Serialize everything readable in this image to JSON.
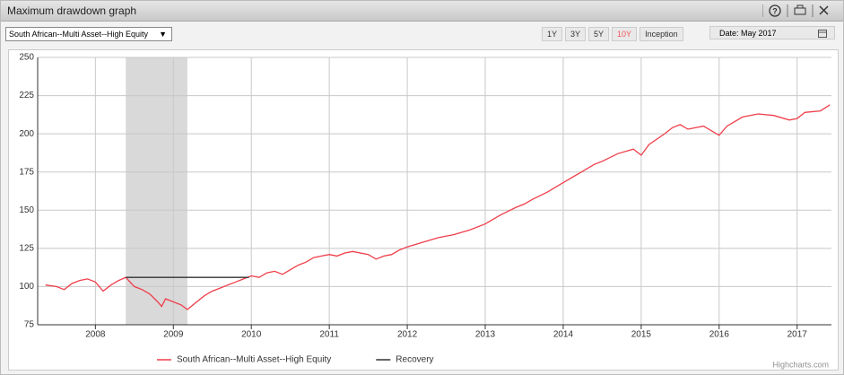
{
  "window": {
    "title": "Maximum drawdown graph",
    "fund_select": "South African--Multi Asset--High Equity",
    "periods": [
      "1Y",
      "3Y",
      "5Y",
      "10Y",
      "Inception"
    ],
    "active_period": 3,
    "date": "Date: May 2017",
    "credit": "Highcharts.com"
  },
  "chart_data": {
    "type": "line",
    "xlim": [
      2007.26,
      2017.44
    ],
    "xticks": [
      2008,
      2009,
      2010,
      2011,
      2012,
      2013,
      2014,
      2015,
      2016,
      2017
    ],
    "ylim": [
      75,
      250
    ],
    "yticks": [
      75,
      100,
      125,
      150,
      175,
      200,
      225,
      250
    ],
    "grid": true,
    "plot_band": [
      2008.39,
      2009.18
    ],
    "plot_band_color": "#d9d9d9",
    "series": [
      {
        "name": "South African--Multi Asset--High Equity",
        "color": "#ef3e4a",
        "x": [
          2007.36,
          2007.5,
          2007.6,
          2007.7,
          2007.8,
          2007.9,
          2008.0,
          2008.1,
          2008.2,
          2008.3,
          2008.39,
          2008.5,
          2008.6,
          2008.7,
          2008.8,
          2008.85,
          2008.9,
          2009.0,
          2009.1,
          2009.18,
          2009.3,
          2009.4,
          2009.5,
          2009.6,
          2009.7,
          2009.8,
          2009.9,
          2010.0,
          2010.1,
          2010.2,
          2010.3,
          2010.4,
          2010.5,
          2010.6,
          2010.7,
          2010.8,
          2010.9,
          2011.0,
          2011.1,
          2011.2,
          2011.3,
          2011.5,
          2011.6,
          2011.7,
          2011.8,
          2011.9,
          2012.0,
          2012.2,
          2012.4,
          2012.6,
          2012.8,
          2013.0,
          2013.2,
          2013.4,
          2013.5,
          2013.6,
          2013.8,
          2014.0,
          2014.2,
          2014.4,
          2014.5,
          2014.7,
          2014.9,
          2015.0,
          2015.1,
          2015.3,
          2015.4,
          2015.5,
          2015.6,
          2015.8,
          2015.9,
          2016.0,
          2016.1,
          2016.3,
          2016.5,
          2016.7,
          2016.9,
          2017.0,
          2017.1,
          2017.3,
          2017.42
        ],
        "values": [
          101,
          100,
          98,
          102,
          104,
          105,
          103,
          97,
          101,
          104,
          106,
          100,
          98,
          95,
          90,
          87,
          92,
          90,
          88,
          85,
          90,
          94,
          97,
          99,
          101,
          103,
          105,
          107,
          106,
          109,
          110,
          108,
          111,
          114,
          116,
          119,
          120,
          121,
          120,
          122,
          123,
          121,
          118,
          120,
          121,
          124,
          126,
          129,
          132,
          134,
          137,
          141,
          147,
          152,
          154,
          157,
          162,
          168,
          174,
          180,
          182,
          187,
          190,
          186,
          193,
          200,
          204,
          206,
          203,
          205,
          202,
          199,
          205,
          211,
          213,
          212,
          209,
          210,
          214,
          215,
          219
        ]
      },
      {
        "name": "Recovery",
        "color": "#333333",
        "x": [
          2008.39,
          2009.97
        ],
        "values": [
          106,
          106
        ]
      }
    ],
    "legend": "bottom"
  }
}
